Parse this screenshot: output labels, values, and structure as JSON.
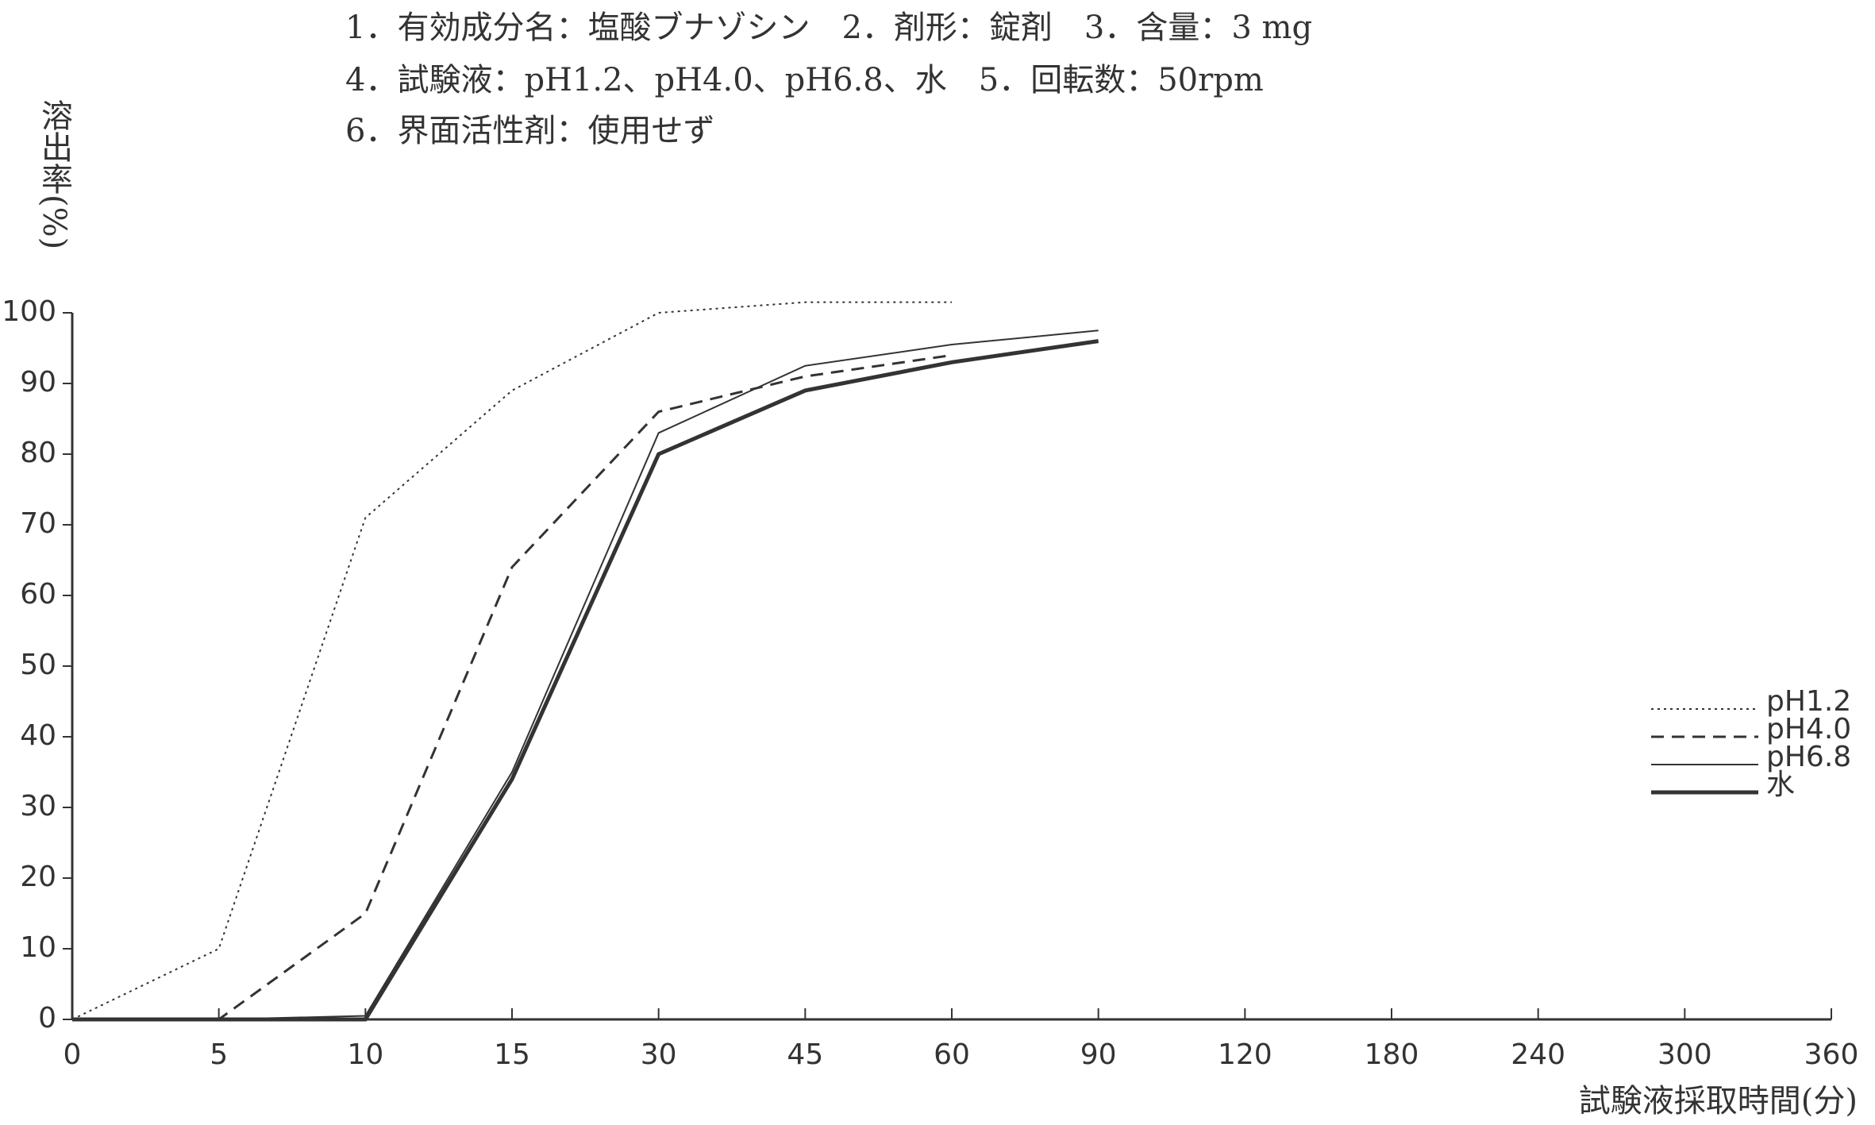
{
  "chart_data": {
    "type": "line",
    "annotations": [
      "1．有効成分名：塩酸ブナゾシン　2．剤形：錠剤　3．含量：3 mg",
      "4．試験液：pH1.2、pH4.0、pH6.8、水　5．回転数：50rpm",
      "6．界面活性剤：使用せず"
    ],
    "y_label": "溶出率(%)",
    "x_label": "試験液採取時間(分)",
    "categories": [
      "0",
      "5",
      "10",
      "15",
      "30",
      "45",
      "60",
      "90",
      "120",
      "180",
      "240",
      "300",
      "360"
    ],
    "ylim": [
      0,
      100
    ],
    "yticks": [
      0,
      10,
      20,
      30,
      40,
      50,
      60,
      70,
      80,
      90,
      100
    ],
    "grid": false,
    "legend": "right",
    "series": [
      {
        "name": "pH1.2",
        "color": "#333333",
        "style": "dotted",
        "values": [
          0,
          10,
          71,
          89,
          100,
          101.5,
          101.5,
          null,
          null,
          null,
          null,
          null,
          null
        ]
      },
      {
        "name": "pH4.0",
        "color": "#333333",
        "style": "dashed",
        "values": [
          0,
          0,
          15,
          64,
          86,
          91,
          94,
          null,
          null,
          null,
          null,
          null,
          null
        ]
      },
      {
        "name": "pH6.8",
        "color": "#333333",
        "style": "thin",
        "values": [
          0,
          0,
          0.5,
          35,
          83,
          92.5,
          95.5,
          97.5,
          null,
          null,
          null,
          null,
          null
        ]
      },
      {
        "name": "水",
        "color": "#333333",
        "style": "thick",
        "values": [
          0,
          0,
          0,
          34,
          80,
          89,
          93,
          96,
          null,
          null,
          null,
          null,
          null
        ]
      }
    ]
  }
}
